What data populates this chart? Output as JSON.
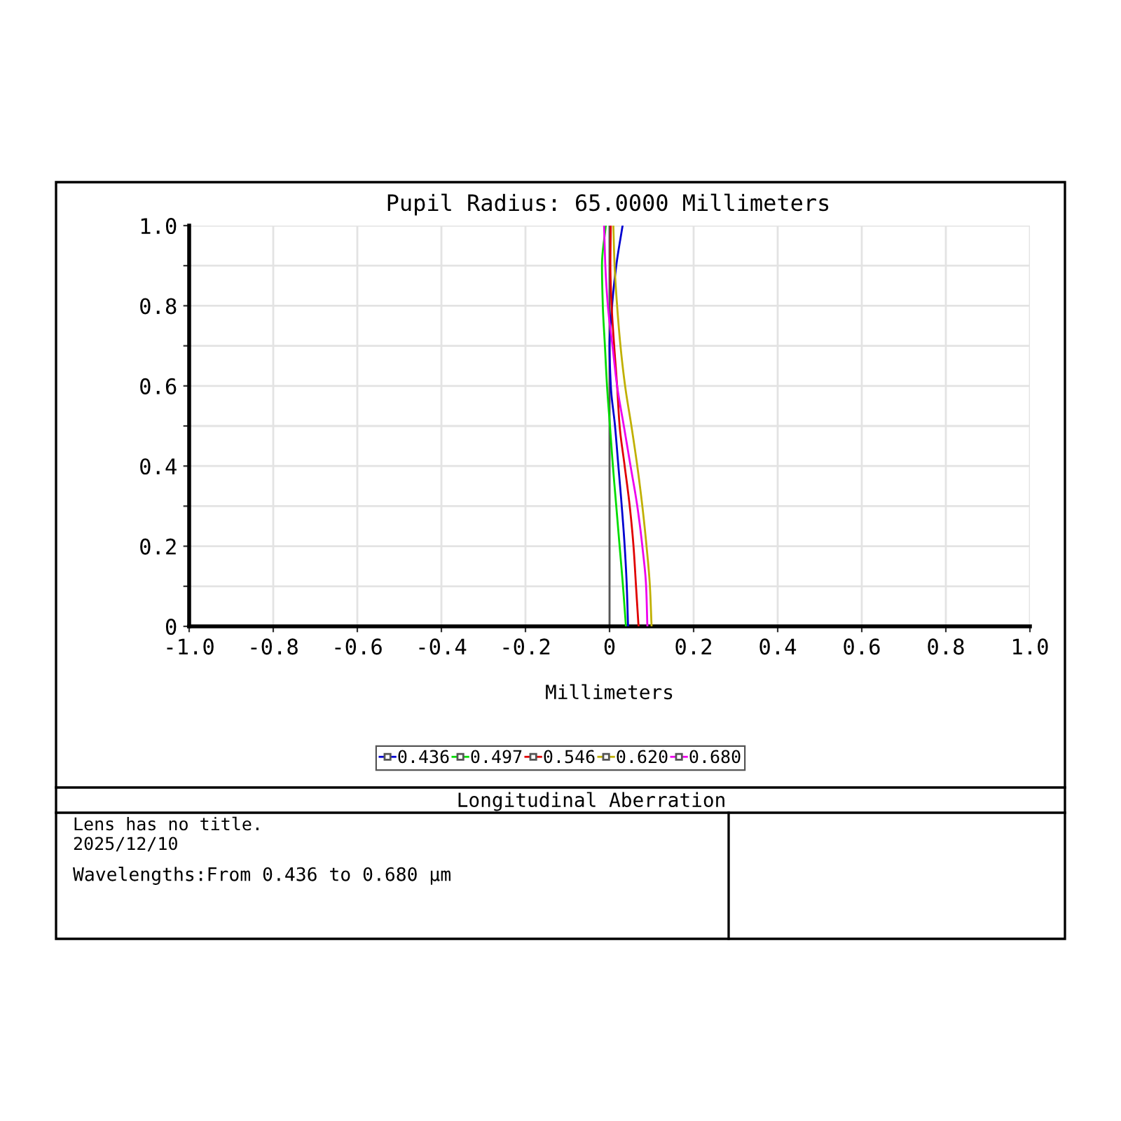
{
  "chart_data": {
    "type": "line",
    "title": "Longitudinal Aberration",
    "subtitle": "Pupil Radius: 65.0000 Millimeters",
    "xlabel": "Millimeters",
    "xlim": [
      -1.0,
      1.0
    ],
    "xticks": [
      {
        "value": -1.0,
        "label": "-1.0"
      },
      {
        "value": -0.8,
        "label": "-0.8"
      },
      {
        "value": -0.6,
        "label": "-0.6"
      },
      {
        "value": -0.4,
        "label": "-0.4"
      },
      {
        "value": -0.2,
        "label": "-0.2"
      },
      {
        "value": 0,
        "label": "0"
      },
      {
        "value": 0.2,
        "label": "0.2"
      },
      {
        "value": 0.4,
        "label": "0.4"
      },
      {
        "value": 0.6,
        "label": "0.6"
      },
      {
        "value": 0.8,
        "label": "0.8"
      },
      {
        "value": 1.0,
        "label": "1.0"
      }
    ],
    "ylim": [
      0,
      1.0
    ],
    "yticks": [
      {
        "value": 0,
        "label": "0"
      },
      {
        "value": 0.1,
        "label": null
      },
      {
        "value": 0.2,
        "label": "0.2"
      },
      {
        "value": 0.3,
        "label": null
      },
      {
        "value": 0.4,
        "label": "0.4"
      },
      {
        "value": 0.5,
        "label": null
      },
      {
        "value": 0.6,
        "label": "0.6"
      },
      {
        "value": 0.7,
        "label": null
      },
      {
        "value": 0.8,
        "label": "0.8"
      },
      {
        "value": 0.9,
        "label": null
      },
      {
        "value": 1.0,
        "label": "1.0"
      }
    ],
    "grid": true,
    "legend": "bottom",
    "line_style": "solid",
    "ref_lines": [
      {
        "axis": "x",
        "value": 0,
        "color": "#555555"
      }
    ],
    "series": [
      {
        "name": "0.436",
        "color": "#0000d0",
        "x": [
          0.044,
          0.041,
          0.036,
          0.029,
          0.021,
          0.013,
          0.003,
          0.0,
          0.006,
          0.016,
          0.031
        ],
        "values": [
          0,
          0.1,
          0.2,
          0.3,
          0.4,
          0.5,
          0.6,
          0.7,
          0.8,
          0.9,
          1.0
        ]
      },
      {
        "name": "0.497",
        "color": "#00dd00",
        "x": [
          0.039,
          0.032,
          0.024,
          0.016,
          0.008,
          0.001,
          -0.006,
          -0.011,
          -0.016,
          -0.018,
          -0.009
        ],
        "values": [
          0,
          0.1,
          0.2,
          0.3,
          0.4,
          0.5,
          0.6,
          0.7,
          0.8,
          0.9,
          1.0
        ]
      },
      {
        "name": "0.546",
        "color": "#e00000",
        "x": [
          0.069,
          0.063,
          0.057,
          0.048,
          0.036,
          0.024,
          0.018,
          0.011,
          0.005,
          0.002,
          0.003
        ],
        "values": [
          0,
          0.1,
          0.2,
          0.3,
          0.4,
          0.5,
          0.6,
          0.7,
          0.8,
          0.9,
          1.0
        ]
      },
      {
        "name": "0.620",
        "color": "#c0b000",
        "x": [
          0.1,
          0.096,
          0.088,
          0.078,
          0.066,
          0.052,
          0.037,
          0.026,
          0.018,
          0.012,
          0.009
        ],
        "values": [
          0,
          0.1,
          0.2,
          0.3,
          0.4,
          0.5,
          0.6,
          0.7,
          0.8,
          0.9,
          1.0
        ]
      },
      {
        "name": "0.680",
        "color": "#ee00ee",
        "x": [
          0.09,
          0.087,
          0.078,
          0.066,
          0.05,
          0.034,
          0.018,
          0.007,
          -0.004,
          -0.01,
          -0.013
        ],
        "values": [
          0,
          0.1,
          0.2,
          0.3,
          0.4,
          0.5,
          0.6,
          0.7,
          0.8,
          0.9,
          1.0
        ]
      }
    ],
    "annotations": [
      "Lens has no title.",
      "2025/12/10",
      "Wavelengths:From 0.436 to 0.680 µm"
    ]
  }
}
